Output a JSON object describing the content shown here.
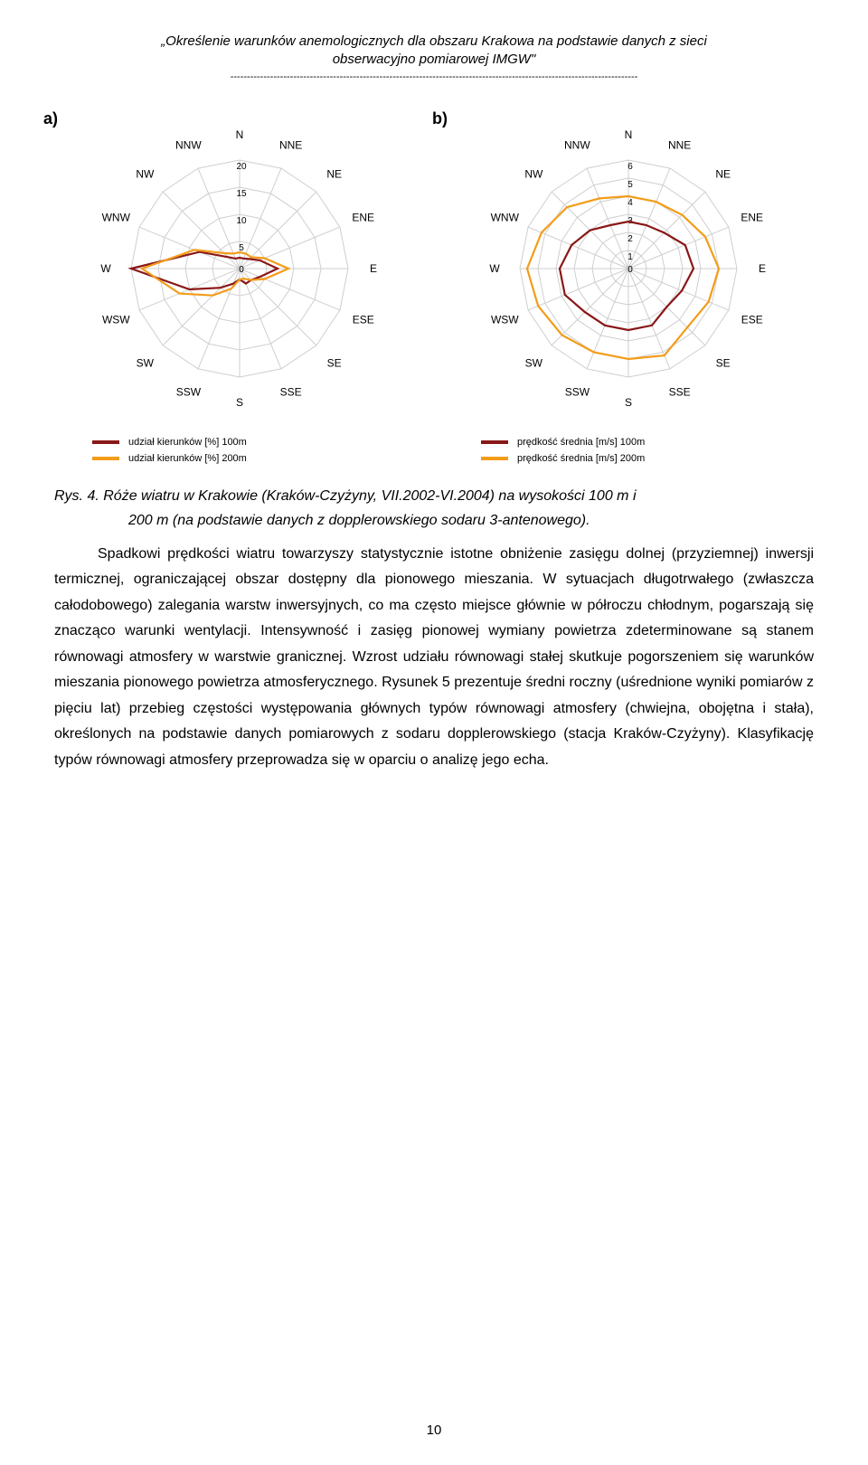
{
  "header": {
    "line1": "„Określenie warunków anemologicznych dla obszaru Krakowa na podstawie danych z sieci",
    "line2": "obserwacyjno pomiarowej IMGW\"",
    "rule": "---------------------------------------------------------------------------------------------------------------------------"
  },
  "directions": [
    "N",
    "NNE",
    "NE",
    "ENE",
    "E",
    "ESE",
    "SE",
    "SSE",
    "S",
    "SSW",
    "SW",
    "WSW",
    "W",
    "WNW",
    "NW",
    "NNW"
  ],
  "chartA": {
    "panel_label": "a)",
    "type": "radar",
    "ticks": [
      5,
      10,
      15,
      20
    ],
    "max": 20,
    "grid_color": "#cfcfcf",
    "background_color": "#ffffff",
    "series": [
      {
        "name": "udział kierunków  [%] 100m",
        "color": "#8a1717",
        "stroke_width": 2.2,
        "values": [
          2,
          2,
          2.5,
          4,
          7,
          4,
          3,
          3,
          2,
          3,
          5,
          10,
          20,
          8,
          3,
          2
        ]
      },
      {
        "name": "udział kierunków  [%] 200m",
        "color": "#f39c1a",
        "stroke_width": 2.2,
        "values": [
          3,
          3,
          3,
          5,
          9,
          5,
          3,
          2,
          2,
          4,
          7,
          12,
          18,
          9,
          4,
          3
        ]
      }
    ]
  },
  "chartB": {
    "panel_label": "b)",
    "type": "radar",
    "ticks": [
      1,
      2,
      3,
      4,
      5,
      6
    ],
    "max": 6,
    "grid_color": "#cfcfcf",
    "background_color": "#ffffff",
    "series": [
      {
        "name": "prędkość średnia [m/s] 100m",
        "color": "#8a1717",
        "stroke_width": 2.2,
        "values": [
          2.6,
          2.6,
          2.8,
          3.4,
          3.6,
          3.2,
          3.0,
          3.4,
          3.4,
          3.4,
          3.4,
          3.8,
          3.8,
          3.4,
          3.0,
          2.6
        ]
      },
      {
        "name": "prędkość średnia [m/s] 200m",
        "color": "#f39c1a",
        "stroke_width": 2.2,
        "values": [
          4.0,
          4.0,
          4.2,
          4.6,
          5.0,
          4.8,
          4.6,
          5.2,
          5.0,
          5.0,
          5.2,
          5.4,
          5.6,
          5.2,
          4.8,
          4.2
        ]
      }
    ]
  },
  "legendA": [
    {
      "color": "#8a1717",
      "label": "udział kierunków  [%] 100m"
    },
    {
      "color": "#f39c1a",
      "label": "udział kierunków  [%] 200m"
    }
  ],
  "legendB": [
    {
      "color": "#8a1717",
      "label": "prędkość średnia [m/s] 100m"
    },
    {
      "color": "#f39c1a",
      "label": "prędkość średnia [m/s] 200m"
    }
  ],
  "caption": {
    "lead": "Rys. 4. Róże wiatru w Krakowie (Kraków-Czyżyny, VII.2002-VI.2004) na wysokości 100 m i",
    "cont": "200 m (na podstawie danych z dopplerowskiego sodaru 3-antenowego)."
  },
  "body": {
    "p1": "Spadkowi prędkości wiatru towarzyszy statystycznie istotne obniżenie zasięgu dolnej (przyziemnej) inwersji termicznej, ograniczającej obszar dostępny dla pionowego mieszania. W sytuacjach długotrwałego (zwłaszcza całodobowego) zalegania warstw inwersyjnych, co ma często miejsce głównie w półroczu chłodnym, pogarszają się znacząco warunki wentylacji. Intensywność i zasięg pionowej wymiany powietrza zdeterminowane są stanem równowagi atmosfery w warstwie granicznej. Wzrost udziału równowagi stałej skutkuje pogorszeniem się warunków mieszania pionowego powietrza atmosferycznego. Rysunek 5 prezentuje średni roczny (uśrednione wyniki pomiarów z pięciu lat) przebieg częstości występowania głównych typów równowagi atmosfery (chwiejna, obojętna i stała), określonych na podstawie danych pomiarowych z sodaru dopplerowskiego (stacja Kraków-Czyżyny). Klasyfikację typów równowagi atmosfery przeprowadza się w oparciu o analizę jego echa."
  },
  "page_number": "10"
}
